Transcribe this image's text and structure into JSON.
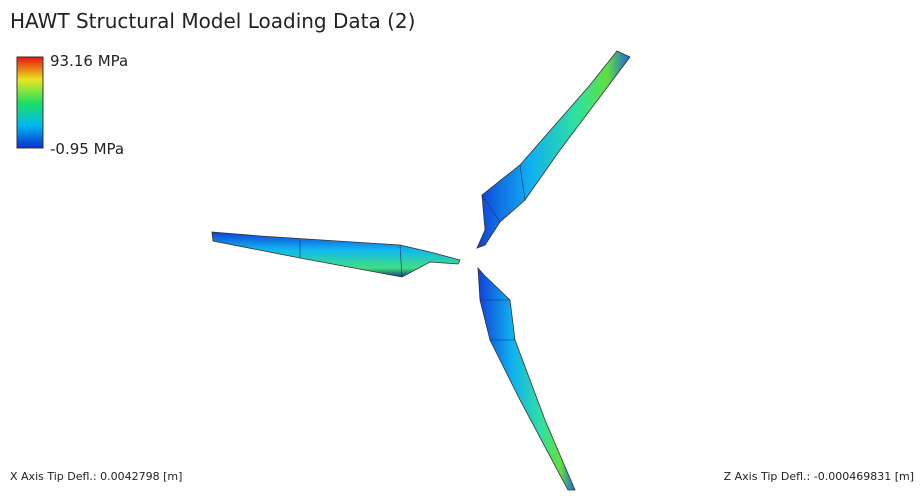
{
  "title": "HAWT Structural Model Loading Data (2)",
  "legend": {
    "max_label": "93.16 MPa",
    "min_label": "-0.95 MPa"
  },
  "footer": {
    "x_deflection": "X Axis Tip Defl.: 0.0042798 [m]",
    "z_deflection": "Z Axis Tip Defl.: -0.000469831 [m]"
  }
}
